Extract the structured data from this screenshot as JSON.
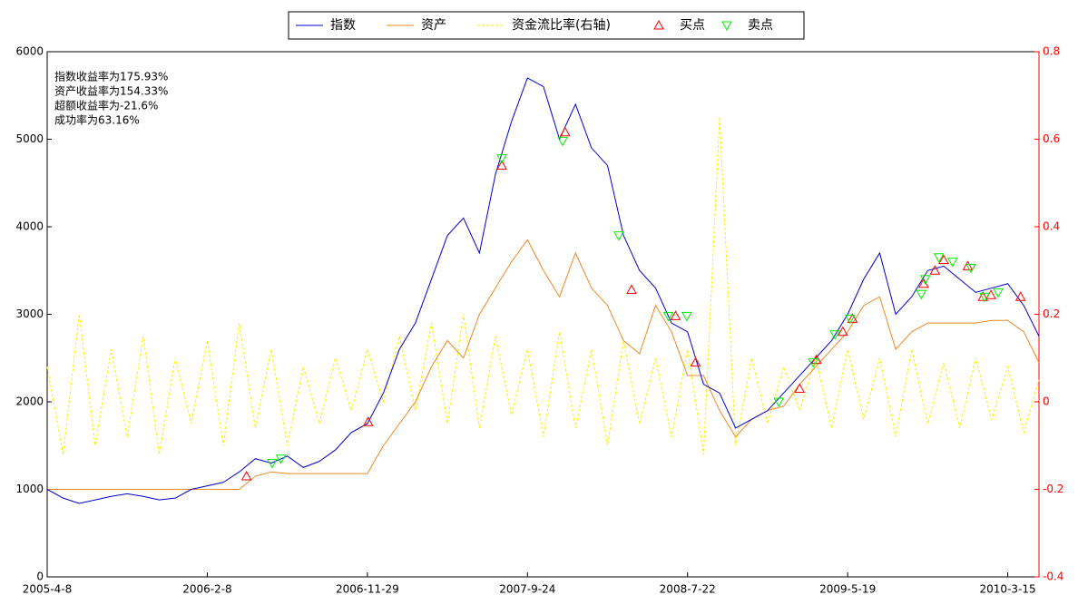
{
  "chart_data": {
    "type": "line",
    "x": [
      1,
      21,
      41,
      61,
      81,
      101,
      121,
      141,
      161,
      181,
      201,
      221,
      241,
      261,
      281,
      301,
      321,
      341,
      361,
      381,
      401,
      421,
      441,
      461,
      481,
      501,
      521,
      541,
      561,
      581,
      601,
      621,
      641,
      661,
      681,
      701,
      721,
      741,
      761,
      781,
      801,
      821,
      841,
      861,
      881,
      901,
      921,
      941,
      961,
      981,
      1001,
      1021,
      1041,
      1061,
      1081,
      1101,
      1121,
      1141,
      1161,
      1181,
      1201,
      1221,
      1240
    ],
    "xlim": [
      1,
      1240
    ],
    "xticks": [
      {
        "value": 1,
        "label": "2005-4-8"
      },
      {
        "value": 201,
        "label": "2006-2-8"
      },
      {
        "value": 401,
        "label": "2006-11-29"
      },
      {
        "value": 601,
        "label": "2007-9-24"
      },
      {
        "value": 801,
        "label": "2008-7-22"
      },
      {
        "value": 1001,
        "label": "2009-5-19"
      },
      {
        "value": 1201,
        "label": "2010-3-15"
      }
    ],
    "ylim": [
      0,
      6000
    ],
    "yticks": [
      0,
      1000,
      2000,
      3000,
      4000,
      5000,
      6000
    ],
    "y2lim": [
      -0.4,
      0.8
    ],
    "y2ticks": [
      -0.4,
      -0.2,
      0,
      0.2,
      0.4,
      0.6,
      0.8
    ],
    "y2color": "#ff0000",
    "legend": "top",
    "annotations": [
      "指数收益率为175.93%",
      "资产收益率为154.33%",
      "超额收益率为-21.6%",
      "成功率为63.16%"
    ],
    "series": [
      {
        "name": "指数",
        "color": "#0000cc",
        "style": "solid",
        "values": [
          1000,
          900,
          840,
          880,
          920,
          950,
          920,
          880,
          900,
          1000,
          1040,
          1080,
          1200,
          1350,
          1300,
          1380,
          1250,
          1320,
          1450,
          1650,
          1750,
          2100,
          2600,
          2900,
          3400,
          3900,
          4100,
          3700,
          4600,
          5200,
          5700,
          5600,
          5000,
          5400,
          4900,
          4700,
          3900,
          3500,
          3300,
          2900,
          2800,
          2200,
          2100,
          1700,
          1800,
          1900,
          2100,
          2300,
          2500,
          2700,
          3000,
          3400,
          3700,
          3000,
          3200,
          3500,
          3550,
          3400,
          3250,
          3300,
          3350,
          3100,
          2750
        ]
      },
      {
        "name": "资产",
        "color": "#ee8822",
        "style": "solid",
        "values": [
          1000,
          1000,
          1000,
          1000,
          1000,
          1000,
          1000,
          1000,
          1000,
          1000,
          1000,
          1000,
          1000,
          1150,
          1200,
          1180,
          1180,
          1180,
          1180,
          1180,
          1180,
          1500,
          1750,
          2000,
          2400,
          2700,
          2500,
          3000,
          3300,
          3600,
          3850,
          3500,
          3200,
          3700,
          3300,
          3100,
          2700,
          2550,
          3100,
          2800,
          2300,
          2300,
          1900,
          1600,
          1800,
          1900,
          1950,
          2200,
          2400,
          2600,
          2800,
          3100,
          3200,
          2600,
          2800,
          2900,
          2900,
          2900,
          2900,
          2930,
          2930,
          2800,
          2450
        ]
      },
      {
        "name": "资金流比率(右轴)",
        "color": "#ffee00",
        "style": "dashed",
        "axis": "y2",
        "values": [
          0.08,
          -0.12,
          0.2,
          -0.1,
          0.12,
          -0.08,
          0.15,
          -0.12,
          0.1,
          -0.05,
          0.14,
          -0.1,
          0.18,
          -0.06,
          0.12,
          -0.1,
          0.08,
          -0.05,
          0.1,
          -0.02,
          0.12,
          0.0,
          0.15,
          -0.02,
          0.18,
          -0.05,
          0.2,
          -0.06,
          0.15,
          -0.03,
          0.12,
          -0.08,
          0.16,
          -0.06,
          0.12,
          -0.1,
          0.14,
          -0.05,
          0.1,
          -0.08,
          0.12,
          -0.12,
          0.65,
          -0.1,
          0.1,
          -0.05,
          0.08,
          -0.02,
          0.1,
          -0.06,
          0.12,
          -0.04,
          0.1,
          -0.08,
          0.12,
          -0.05,
          0.09,
          -0.06,
          0.1,
          -0.04,
          0.08,
          -0.07,
          0.05
        ]
      },
      {
        "name": "买点",
        "color": "#ff0000",
        "marker": "triangle-up",
        "x": [
          250,
          402,
          569,
          648,
          731,
          786,
          811,
          941,
          962,
          995,
          1007,
          1096,
          1110,
          1121,
          1151,
          1170,
          1180,
          1217
        ],
        "values": [
          1150,
          1770,
          4700,
          5080,
          3280,
          2980,
          2450,
          2150,
          2480,
          2800,
          2950,
          3350,
          3500,
          3620,
          3550,
          3200,
          3220,
          3200
        ]
      },
      {
        "name": "卖点",
        "color": "#00ee00",
        "marker": "triangle-down",
        "x": [
          282,
          293,
          569,
          645,
          715,
          777,
          800,
          915,
          958,
          985,
          1004,
          1093,
          1098,
          1115,
          1132,
          1155,
          1172,
          1189
        ],
        "values": [
          1300,
          1350,
          4780,
          4980,
          3900,
          2980,
          2980,
          2000,
          2450,
          2770,
          2950,
          3230,
          3400,
          3650,
          3600,
          3530,
          3200,
          3250
        ]
      }
    ]
  }
}
